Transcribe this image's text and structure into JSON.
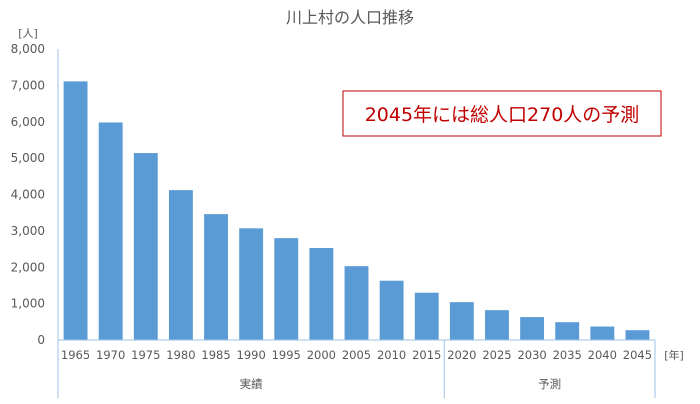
{
  "chart_data": {
    "type": "bar",
    "title": "川上村の人口推移",
    "ylabel": "[人]",
    "xlabel": "[年]",
    "ylim": [
      0,
      8000
    ],
    "yticks": [
      "0",
      "1,000",
      "2,000",
      "3,000",
      "4,000",
      "5,000",
      "6,000",
      "7,000",
      "8,000"
    ],
    "categories": [
      "1965",
      "1970",
      "1975",
      "1980",
      "1985",
      "1990",
      "1995",
      "2000",
      "2005",
      "2010",
      "2015",
      "2020",
      "2025",
      "2030",
      "2035",
      "2040",
      "2045"
    ],
    "values": [
      7110,
      5980,
      5140,
      4120,
      3460,
      3070,
      2800,
      2530,
      2030,
      1630,
      1300,
      1040,
      820,
      630,
      490,
      370,
      270
    ],
    "groups": [
      {
        "label": "実績",
        "count": 11
      },
      {
        "label": "予測",
        "count": 6
      }
    ],
    "annotation": "2045年には総人口270人の予測",
    "grid": false,
    "legend": "none",
    "colors": {
      "bar": "#5B9BD5",
      "annotation_border": "#C00000",
      "annotation_text": "#C00000",
      "axis": "#9DC3E6"
    }
  }
}
